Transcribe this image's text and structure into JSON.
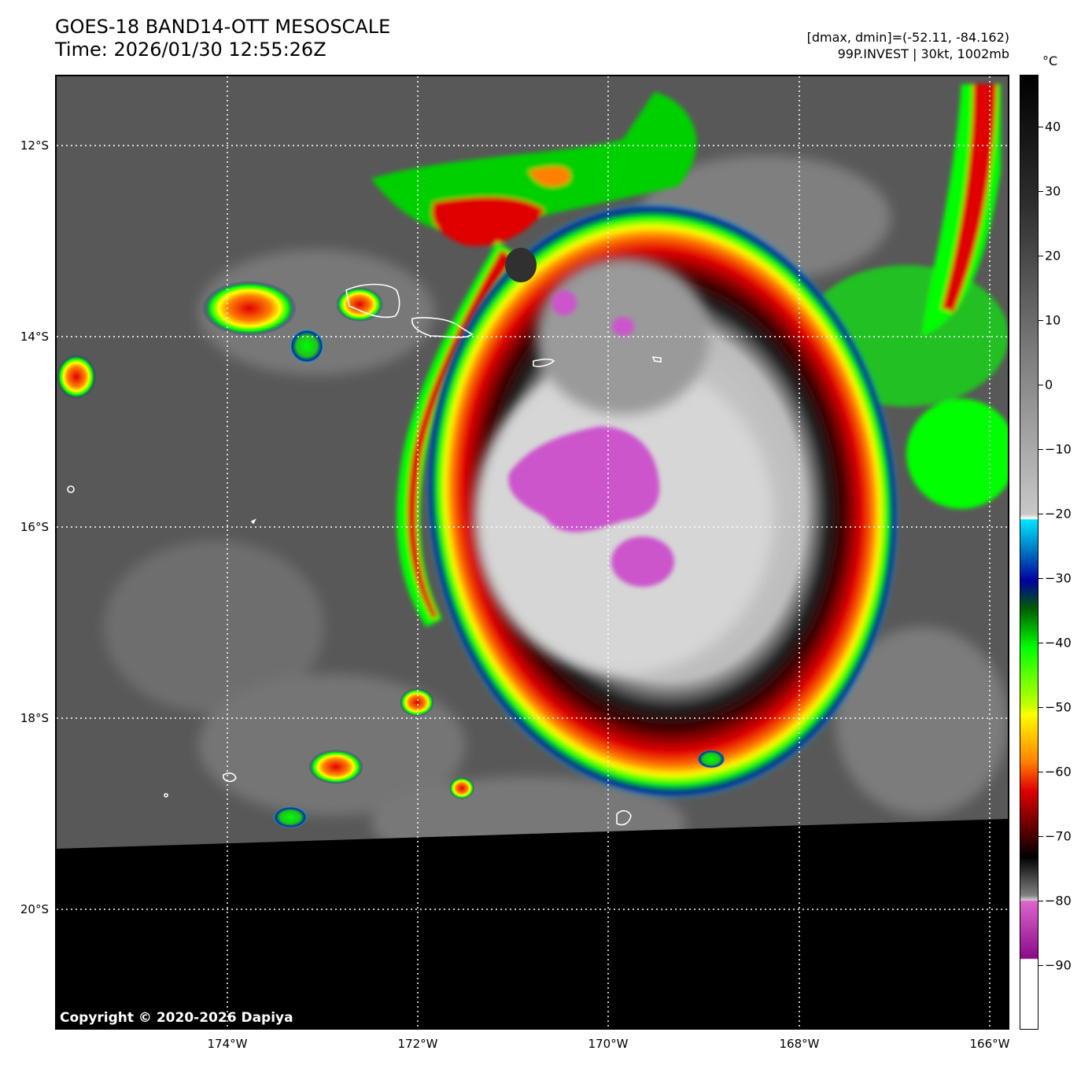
{
  "header": {
    "title_line1": "GOES-18 BAND14-OTT MESOSCALE",
    "title_line2": "Time: 2026/01/30 12:55:26Z",
    "meta_line1": "[dmax, dmin]=(-52.11, -84.162)",
    "meta_line2": "99P.INVEST | 30kt, 1002mb"
  },
  "axes": {
    "lat_labels": [
      "12°S",
      "14°S",
      "16°S",
      "18°S",
      "20°S"
    ],
    "lon_labels": [
      "174°W",
      "172°W",
      "170°W",
      "168°W",
      "166°W"
    ],
    "lat_range": [
      -21.3,
      -11.3
    ],
    "lon_range": [
      -175.8,
      -165.8
    ],
    "grid": "dotted white"
  },
  "colorbar": {
    "unit": "°C",
    "labels": [
      "40",
      "30",
      "20",
      "10",
      "0",
      "−10",
      "−20",
      "−30",
      "−40",
      "−50",
      "−60",
      "−70",
      "−80",
      "−90"
    ],
    "range": [
      -100,
      48
    ],
    "colors": {
      "warm": "#101010",
      "gray": "#d8d8d8",
      "cyan": "#00e6ff",
      "blue": "#0000a0",
      "green": "#00ff00",
      "yellow": "#ffff00",
      "orange": "#ff8000",
      "red": "#e00000",
      "dark_red": "#400000",
      "magenta": "#cc55cc",
      "purple": "#8a0a8a",
      "white": "#ffffff"
    }
  },
  "copyright": "Copyright © 2020-2026 Dapiya"
}
